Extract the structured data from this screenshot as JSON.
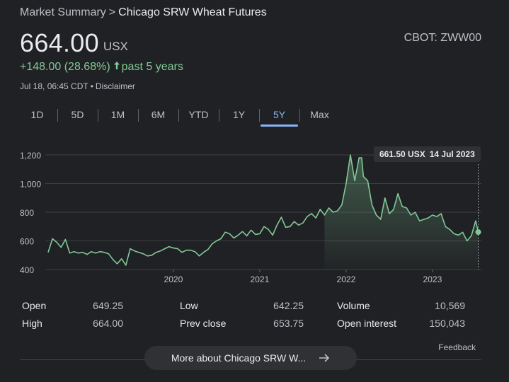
{
  "breadcrumb": {
    "parent": "Market Summary",
    "separator": ">",
    "current": "Chicago SRW Wheat Futures"
  },
  "quote": {
    "price": "664.00",
    "currency": "USX",
    "ticker": "CBOT: ZWW00",
    "change": "+148.00 (28.68%)",
    "change_period": "past 5 years",
    "change_arrow_icon": "arrow-up-icon",
    "positive_color": "#81c995",
    "timestamp": "Jul 18, 06:45 CDT",
    "disclaimer": "Disclaimer"
  },
  "range_tabs": [
    {
      "label": "1D",
      "active": false
    },
    {
      "label": "5D",
      "active": false
    },
    {
      "label": "1M",
      "active": false
    },
    {
      "label": "6M",
      "active": false
    },
    {
      "label": "YTD",
      "active": false
    },
    {
      "label": "1Y",
      "active": false
    },
    {
      "label": "5Y",
      "active": true
    },
    {
      "label": "Max",
      "active": false
    }
  ],
  "tooltip": {
    "value": "661.50 USX",
    "date": "14 Jul 2023"
  },
  "chart_data": {
    "type": "area",
    "line_color": "#81c995",
    "grid": true,
    "ylim": [
      400,
      1200
    ],
    "y_ticks": [
      400,
      600,
      800,
      1000,
      1200
    ],
    "y_tick_labels": [
      "400",
      "600",
      "800",
      "1,000",
      "1,200"
    ],
    "x_ticks": [
      2020,
      2021,
      2022,
      2023
    ],
    "x_tick_labels": [
      "2020",
      "2021",
      "2022",
      "2023"
    ],
    "x_range": [
      2018.55,
      2023.55
    ],
    "x": [
      2018.55,
      2018.6,
      2018.65,
      2018.7,
      2018.75,
      2018.8,
      2018.85,
      2018.9,
      2018.95,
      2019.0,
      2019.05,
      2019.1,
      2019.15,
      2019.2,
      2019.25,
      2019.3,
      2019.35,
      2019.4,
      2019.45,
      2019.5,
      2019.55,
      2019.6,
      2019.65,
      2019.7,
      2019.75,
      2019.8,
      2019.85,
      2019.9,
      2019.95,
      2020.0,
      2020.05,
      2020.1,
      2020.15,
      2020.2,
      2020.25,
      2020.3,
      2020.35,
      2020.4,
      2020.45,
      2020.5,
      2020.55,
      2020.6,
      2020.65,
      2020.7,
      2020.75,
      2020.8,
      2020.85,
      2020.9,
      2020.95,
      2021.0,
      2021.05,
      2021.1,
      2021.15,
      2021.2,
      2021.25,
      2021.3,
      2021.35,
      2021.4,
      2021.45,
      2021.5,
      2021.55,
      2021.6,
      2021.65,
      2021.7,
      2021.75,
      2021.8,
      2021.85,
      2021.9,
      2021.95,
      2022.0,
      2022.05,
      2022.1,
      2022.15,
      2022.18,
      2022.2,
      2022.25,
      2022.3,
      2022.35,
      2022.4,
      2022.45,
      2022.5,
      2022.55,
      2022.6,
      2022.65,
      2022.7,
      2022.75,
      2022.8,
      2022.85,
      2022.9,
      2022.95,
      2023.0,
      2023.05,
      2023.1,
      2023.15,
      2023.2,
      2023.25,
      2023.3,
      2023.35,
      2023.4,
      2023.45,
      2023.5,
      2023.53
    ],
    "series": [
      {
        "values": [
          520,
          615,
          590,
          555,
          610,
          515,
          525,
          515,
          520,
          505,
          525,
          515,
          525,
          520,
          510,
          470,
          440,
          475,
          430,
          545,
          530,
          520,
          510,
          495,
          500,
          520,
          530,
          545,
          560,
          550,
          545,
          520,
          535,
          535,
          525,
          495,
          520,
          540,
          580,
          600,
          615,
          660,
          650,
          620,
          640,
          665,
          635,
          675,
          645,
          650,
          700,
          680,
          640,
          710,
          765,
          695,
          700,
          735,
          710,
          725,
          770,
          790,
          760,
          820,
          780,
          830,
          800,
          810,
          850,
          1000,
          1200,
          1020,
          1180,
          1180,
          1050,
          1020,
          850,
          780,
          750,
          900,
          790,
          820,
          930,
          840,
          830,
          780,
          800,
          740,
          750,
          760,
          780,
          770,
          790,
          700,
          680,
          650,
          640,
          660,
          600,
          635,
          740,
          661.5
        ]
      }
    ],
    "last_value": 661.5
  },
  "stats": {
    "open_label": "Open",
    "open_value": "649.25",
    "high_label": "High",
    "high_value": "664.00",
    "low_label": "Low",
    "low_value": "642.25",
    "prev_close_label": "Prev close",
    "prev_close_value": "653.75",
    "volume_label": "Volume",
    "volume_value": "10,569",
    "open_interest_label": "Open interest",
    "open_interest_value": "150,043"
  },
  "feedback": "Feedback",
  "more_button": {
    "label": "More about Chicago SRW W...",
    "icon": "arrow-right-icon"
  }
}
